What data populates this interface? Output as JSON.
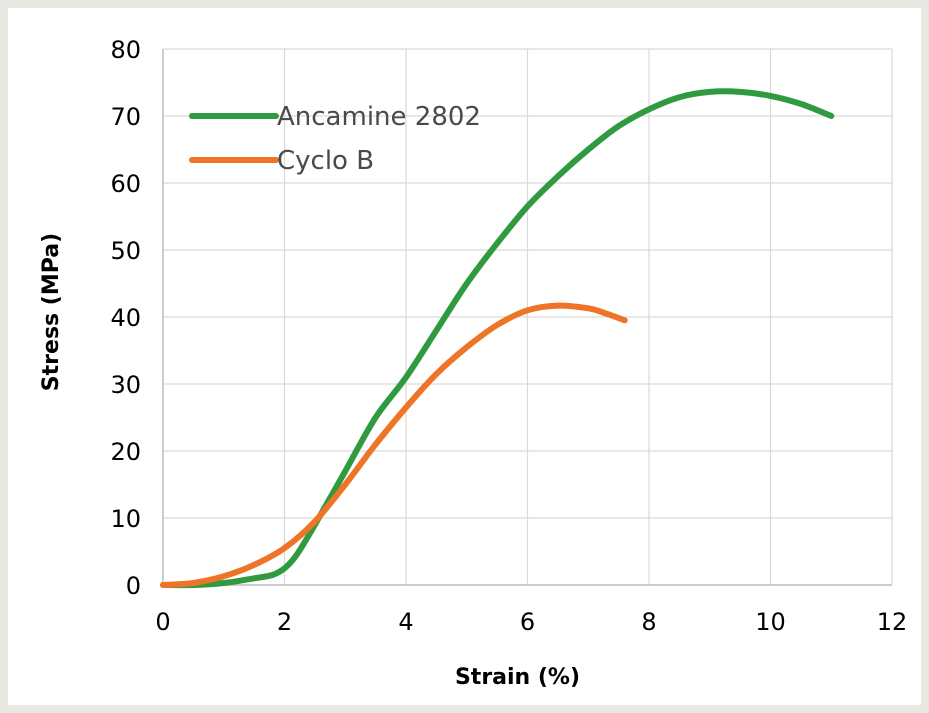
{
  "chart_data": {
    "type": "line",
    "title": "",
    "xlabel": "Strain (%)",
    "ylabel": "Stress (MPa)",
    "xlim": [
      0,
      12
    ],
    "ylim": [
      0,
      80
    ],
    "xticks": [
      0,
      2,
      4,
      6,
      8,
      10,
      12
    ],
    "yticks": [
      0,
      10,
      20,
      30,
      40,
      50,
      60,
      70,
      80
    ],
    "grid": "horizontal and vertical",
    "legend_placement": "top-left",
    "series": [
      {
        "name": "Ancamine 2802",
        "color": "#2f9a3f",
        "x": [
          0,
          0.5,
          1.0,
          1.5,
          1.8,
          2.0,
          2.2,
          2.5,
          3.0,
          3.5,
          4.0,
          4.5,
          5.0,
          5.5,
          6.0,
          6.5,
          7.0,
          7.5,
          8.0,
          8.5,
          9.0,
          9.5,
          10.0,
          10.5,
          11.0
        ],
        "y": [
          0,
          0,
          0.3,
          1.0,
          1.5,
          2.5,
          4.5,
          9,
          17,
          25,
          31,
          38,
          45,
          51,
          56.5,
          61,
          65,
          68.5,
          71,
          72.8,
          73.6,
          73.6,
          73,
          71.8,
          70
        ]
      },
      {
        "name": "Cyclo B",
        "color": "#ee7527",
        "x": [
          0,
          0.5,
          1.0,
          1.5,
          2.0,
          2.5,
          3.0,
          3.5,
          4.0,
          4.5,
          5.0,
          5.5,
          6.0,
          6.5,
          7.0,
          7.3,
          7.6
        ],
        "y": [
          0,
          0.3,
          1.3,
          3.0,
          5.5,
          9.5,
          15,
          21,
          26.5,
          31.5,
          35.5,
          38.8,
          41,
          41.7,
          41.3,
          40.5,
          39.5
        ]
      }
    ]
  }
}
